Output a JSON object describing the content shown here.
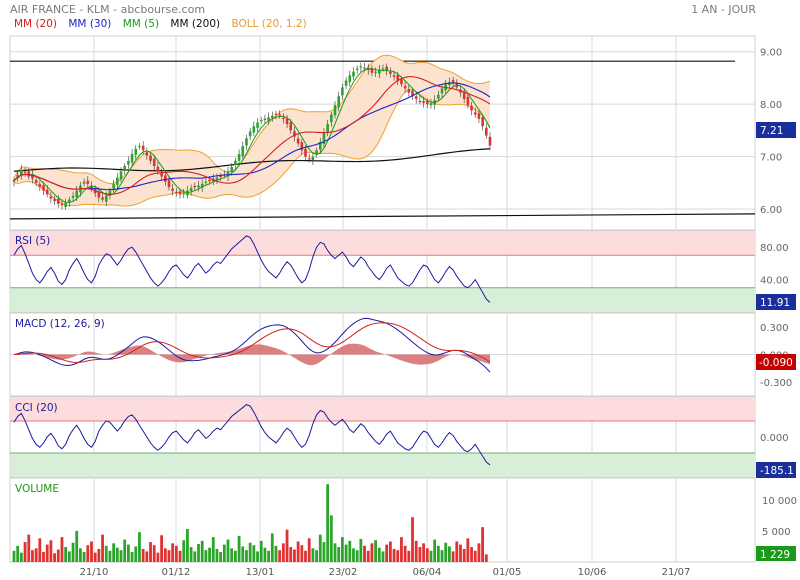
{
  "header": {
    "title": "AIR FRANCE - KLM - abcbourse.com",
    "period": "1 AN - JOUR"
  },
  "colors": {
    "mm20": "#d42020",
    "mm30": "#2222cc",
    "mm5": "#1a9a1a",
    "mm200": "#111111",
    "boll": "#f0a030",
    "up": "#2aa52a",
    "down": "#e03030",
    "grid": "#d8d8d8"
  },
  "legend": [
    {
      "label": "MM (20)",
      "color": "#d42020"
    },
    {
      "label": "MM (30)",
      "color": "#2222cc"
    },
    {
      "label": "MM (5)",
      "color": "#1a9a1a"
    },
    {
      "label": "MM (200)",
      "color": "#111111"
    },
    {
      "label": "BOLL (20, 1.2)",
      "color": "#e89a30"
    }
  ],
  "chart_data": [
    {
      "type": "candlestick",
      "y_ticks": [
        "9.00",
        "8.00",
        "7.00",
        "6.00"
      ],
      "last_value": "7.21",
      "ylim": [
        5.6,
        9.3
      ],
      "resistance_level": 8.82,
      "support_level": 5.85,
      "close": [
        6.55,
        6.65,
        6.75,
        6.7,
        6.62,
        6.58,
        6.5,
        6.42,
        6.35,
        6.28,
        6.2,
        6.15,
        6.1,
        6.08,
        6.12,
        6.18,
        6.25,
        6.35,
        6.45,
        6.52,
        6.48,
        6.4,
        6.3,
        6.22,
        6.18,
        6.25,
        6.35,
        6.48,
        6.6,
        6.72,
        6.82,
        6.92,
        7.05,
        7.15,
        7.2,
        7.12,
        7.02,
        6.92,
        6.82,
        6.72,
        6.62,
        6.52,
        6.42,
        6.35,
        6.3,
        6.28,
        6.3,
        6.35,
        6.4,
        6.42,
        6.45,
        6.48,
        6.52,
        6.55,
        6.58,
        6.6,
        6.62,
        6.66,
        6.72,
        6.8,
        6.92,
        7.05,
        7.2,
        7.35,
        7.48,
        7.58,
        7.65,
        7.7,
        7.72,
        7.75,
        7.78,
        7.8,
        7.78,
        7.72,
        7.62,
        7.5,
        7.38,
        7.25,
        7.12,
        7.0,
        6.95,
        7.0,
        7.12,
        7.28,
        7.45,
        7.62,
        7.8,
        7.98,
        8.15,
        8.32,
        8.45,
        8.55,
        8.62,
        8.68,
        8.72,
        8.7,
        8.65,
        8.6,
        8.62,
        8.66,
        8.68,
        8.64,
        8.58,
        8.52,
        8.45,
        8.38,
        8.3,
        8.22,
        8.15,
        8.1,
        8.05,
        8.02,
        8.0,
        8.02,
        8.08,
        8.18,
        8.3,
        8.38,
        8.42,
        8.4,
        8.32,
        8.22,
        8.1,
        7.98,
        7.88,
        7.8,
        7.72,
        7.58,
        7.4,
        7.21
      ],
      "mm200_start": 6.72,
      "mm200_end": 7.1
    },
    {
      "type": "line",
      "name": "RSI (5)",
      "y_ticks": [
        "80.00",
        "40.00"
      ],
      "ylim": [
        0,
        100
      ],
      "overbought": 70,
      "oversold": 30,
      "last_value": "11.91",
      "values": [
        70,
        78,
        82,
        72,
        60,
        48,
        40,
        36,
        42,
        50,
        55,
        48,
        38,
        34,
        40,
        52,
        60,
        66,
        58,
        48,
        40,
        36,
        44,
        58,
        66,
        72,
        70,
        64,
        58,
        64,
        72,
        78,
        80,
        74,
        66,
        58,
        50,
        42,
        36,
        32,
        36,
        42,
        50,
        56,
        58,
        52,
        46,
        42,
        48,
        56,
        60,
        54,
        48,
        52,
        58,
        62,
        60,
        66,
        72,
        78,
        82,
        86,
        90,
        94,
        92,
        84,
        74,
        64,
        56,
        50,
        46,
        42,
        48,
        56,
        62,
        58,
        50,
        42,
        36,
        40,
        52,
        68,
        80,
        86,
        84,
        76,
        70,
        66,
        70,
        74,
        68,
        60,
        56,
        62,
        68,
        64,
        56,
        50,
        44,
        40,
        46,
        54,
        58,
        50,
        42,
        38,
        34,
        32,
        36,
        44,
        52,
        58,
        56,
        48,
        40,
        36,
        42,
        50,
        56,
        52,
        44,
        38,
        32,
        30,
        34,
        40,
        32,
        24,
        16,
        11.91
      ]
    },
    {
      "type": "line",
      "name": "MACD (12, 26, 9)",
      "y_ticks": [
        "0.300",
        "0.000",
        "-0.300"
      ],
      "ylim": [
        -0.45,
        0.45
      ],
      "last_value": "-0.090"
    },
    {
      "type": "line",
      "name": "CCI (20)",
      "y_ticks": [
        "0.000"
      ],
      "ylim": [
        -250,
        250
      ],
      "upper": 100,
      "lower": -100,
      "last_value": "-185.1"
    },
    {
      "type": "bar",
      "name": "VOLUME",
      "y_ticks": [
        "10 000",
        "5 000"
      ],
      "ylim": [
        0,
        13500
      ],
      "last_value": "1 229",
      "values": [
        1800,
        2600,
        1500,
        3200,
        4400,
        1900,
        2200,
        3800,
        1600,
        2800,
        3500,
        1400,
        2000,
        4000,
        2400,
        1700,
        3100,
        5000,
        2200,
        1600,
        2700,
        3300,
        1500,
        2100,
        4400,
        2600,
        1800,
        3000,
        2300,
        1900,
        3600,
        2800,
        1600,
        2500,
        4800,
        2100,
        1700,
        3200,
        2700,
        1500,
        4300,
        2200,
        1900,
        3000,
        2600,
        1800,
        3500,
        5300,
        2400,
        1700,
        2900,
        3400,
        1900,
        2300,
        4000,
        2100,
        1600,
        2800,
        3600,
        2200,
        1800,
        4200,
        2500,
        1900,
        3100,
        2700,
        1700,
        3400,
        2300,
        1800,
        4600,
        2600,
        1900,
        3000,
        5200,
        2400,
        2000,
        3300,
        2700,
        1800,
        3800,
        2200,
        1900,
        4400,
        3200,
        12500,
        7500,
        3000,
        2400,
        4000,
        2800,
        3400,
        2200,
        1900,
        3700,
        2600,
        1800,
        3000,
        3500,
        2300,
        1700,
        2800,
        3300,
        2100,
        1900,
        4000,
        2600,
        1800,
        7200,
        3400,
        2400,
        3000,
        2200,
        1800,
        3600,
        2600,
        1900,
        3100,
        2500,
        1700,
        3300,
        2800,
        2100,
        3800,
        2400,
        1800,
        3000,
        5600,
        1229
      ]
    }
  ],
  "x_axis": {
    "labels": [
      "21/10",
      "01/12",
      "13/01",
      "23/02",
      "06/04",
      "01/05",
      "10/06",
      "21/07"
    ]
  }
}
